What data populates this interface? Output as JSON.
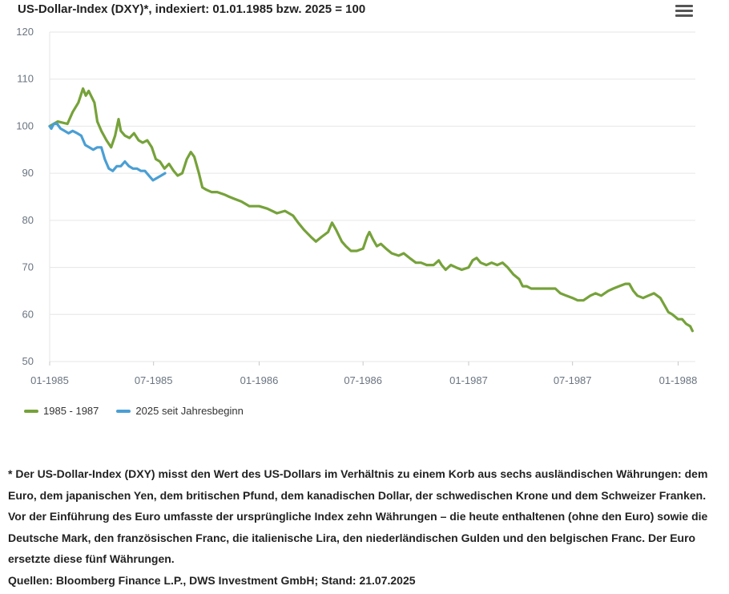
{
  "header": {
    "title": "US-Dollar-Index (DXY)*, indexiert: 01.01.1985 bzw. 2025 = 100",
    "menu_icon": "hamburger-menu-icon"
  },
  "colors": {
    "series_1985": "#76a23a",
    "series_2025": "#4a9fd4",
    "grid": "#e6e6e6",
    "axis_text": "#6a7480"
  },
  "chart_data": {
    "type": "line",
    "title": "US-Dollar-Index (DXY)*, indexiert: 01.01.1985 bzw. 2025 = 100",
    "xlabel": "",
    "ylabel": "",
    "ylim": [
      50,
      120
    ],
    "yticks": [
      50,
      60,
      70,
      80,
      90,
      100,
      110,
      120
    ],
    "xlim": [
      "1985-01-01",
      "1988-01-31"
    ],
    "xticks": [
      {
        "date": "1985-01-01",
        "label": "01-1985"
      },
      {
        "date": "1985-07-01",
        "label": "07-1985"
      },
      {
        "date": "1986-01-01",
        "label": "01-1986"
      },
      {
        "date": "1986-07-01",
        "label": "07-1986"
      },
      {
        "date": "1987-01-01",
        "label": "01-1987"
      },
      {
        "date": "1987-07-01",
        "label": "07-1987"
      },
      {
        "date": "1988-01-01",
        "label": "01-1988"
      }
    ],
    "grid": true,
    "legend_position": "bottom-left",
    "series": [
      {
        "name": "1985 - 1987",
        "color": "#76a23a",
        "points": [
          [
            "1985-01-01",
            100
          ],
          [
            "1985-01-15",
            101
          ],
          [
            "1985-02-01",
            100.5
          ],
          [
            "1985-02-10",
            103
          ],
          [
            "1985-02-20",
            105
          ],
          [
            "1985-02-28",
            108
          ],
          [
            "1985-03-05",
            106.5
          ],
          [
            "1985-03-10",
            107.5
          ],
          [
            "1985-03-20",
            105
          ],
          [
            "1985-03-25",
            101
          ],
          [
            "1985-04-01",
            99
          ],
          [
            "1985-04-10",
            97
          ],
          [
            "1985-04-18",
            95.5
          ],
          [
            "1985-04-25",
            98
          ],
          [
            "1985-05-01",
            101.5
          ],
          [
            "1985-05-05",
            99
          ],
          [
            "1985-05-12",
            98
          ],
          [
            "1985-05-20",
            97.5
          ],
          [
            "1985-05-28",
            98.5
          ],
          [
            "1985-06-05",
            97
          ],
          [
            "1985-06-12",
            96.5
          ],
          [
            "1985-06-20",
            97
          ],
          [
            "1985-06-28",
            95.5
          ],
          [
            "1985-07-05",
            93
          ],
          [
            "1985-07-12",
            92.5
          ],
          [
            "1985-07-20",
            91
          ],
          [
            "1985-07-28",
            92
          ],
          [
            "1985-08-05",
            90.5
          ],
          [
            "1985-08-12",
            89.5
          ],
          [
            "1985-08-20",
            90
          ],
          [
            "1985-08-28",
            93
          ],
          [
            "1985-09-04",
            94.5
          ],
          [
            "1985-09-10",
            93.5
          ],
          [
            "1985-09-18",
            90
          ],
          [
            "1985-09-24",
            87
          ],
          [
            "1985-10-01",
            86.5
          ],
          [
            "1985-10-10",
            86
          ],
          [
            "1985-10-20",
            86
          ],
          [
            "1985-11-01",
            85.5
          ],
          [
            "1985-11-10",
            85
          ],
          [
            "1985-11-20",
            84.5
          ],
          [
            "1985-12-01",
            84
          ],
          [
            "1985-12-15",
            83
          ],
          [
            "1986-01-01",
            83
          ],
          [
            "1986-01-15",
            82.5
          ],
          [
            "1986-02-01",
            81.5
          ],
          [
            "1986-02-15",
            82
          ],
          [
            "1986-03-01",
            81
          ],
          [
            "1986-03-10",
            79.5
          ],
          [
            "1986-03-20",
            78
          ],
          [
            "1986-04-01",
            76.5
          ],
          [
            "1986-04-10",
            75.5
          ],
          [
            "1986-04-20",
            76.5
          ],
          [
            "1986-05-01",
            77.5
          ],
          [
            "1986-05-08",
            79.5
          ],
          [
            "1986-05-15",
            78
          ],
          [
            "1986-05-25",
            75.5
          ],
          [
            "1986-06-01",
            74.5
          ],
          [
            "1986-06-10",
            73.5
          ],
          [
            "1986-06-20",
            73.5
          ],
          [
            "1986-07-01",
            74
          ],
          [
            "1986-07-08",
            76.5
          ],
          [
            "1986-07-12",
            77.5
          ],
          [
            "1986-07-18",
            76
          ],
          [
            "1986-07-25",
            74.5
          ],
          [
            "1986-08-01",
            75
          ],
          [
            "1986-08-10",
            74
          ],
          [
            "1986-08-20",
            73
          ],
          [
            "1986-09-01",
            72.5
          ],
          [
            "1986-09-10",
            73
          ],
          [
            "1986-09-20",
            72
          ],
          [
            "1986-10-01",
            71
          ],
          [
            "1986-10-10",
            71
          ],
          [
            "1986-10-20",
            70.5
          ],
          [
            "1986-11-01",
            70.5
          ],
          [
            "1986-11-10",
            71.5
          ],
          [
            "1986-11-15",
            70.5
          ],
          [
            "1986-11-22",
            69.5
          ],
          [
            "1986-12-01",
            70.5
          ],
          [
            "1986-12-10",
            70
          ],
          [
            "1986-12-20",
            69.5
          ],
          [
            "1987-01-01",
            70
          ],
          [
            "1987-01-08",
            71.5
          ],
          [
            "1987-01-15",
            72
          ],
          [
            "1987-01-22",
            71
          ],
          [
            "1987-02-01",
            70.5
          ],
          [
            "1987-02-10",
            71
          ],
          [
            "1987-02-20",
            70.5
          ],
          [
            "1987-03-01",
            71
          ],
          [
            "1987-03-10",
            70
          ],
          [
            "1987-03-20",
            68.5
          ],
          [
            "1987-03-30",
            67.5
          ],
          [
            "1987-04-05",
            66
          ],
          [
            "1987-04-12",
            66
          ],
          [
            "1987-04-20",
            65.5
          ],
          [
            "1987-05-01",
            65.5
          ],
          [
            "1987-05-15",
            65.5
          ],
          [
            "1987-06-01",
            65.5
          ],
          [
            "1987-06-10",
            64.5
          ],
          [
            "1987-06-20",
            64
          ],
          [
            "1987-07-01",
            63.5
          ],
          [
            "1987-07-10",
            63
          ],
          [
            "1987-07-20",
            63
          ],
          [
            "1987-08-01",
            64
          ],
          [
            "1987-08-10",
            64.5
          ],
          [
            "1987-08-20",
            64
          ],
          [
            "1987-09-01",
            65
          ],
          [
            "1987-09-10",
            65.5
          ],
          [
            "1987-09-20",
            66
          ],
          [
            "1987-10-01",
            66.5
          ],
          [
            "1987-10-08",
            66.5
          ],
          [
            "1987-10-15",
            65
          ],
          [
            "1987-10-22",
            64
          ],
          [
            "1987-11-01",
            63.5
          ],
          [
            "1987-11-10",
            64
          ],
          [
            "1987-11-20",
            64.5
          ],
          [
            "1987-12-01",
            63.5
          ],
          [
            "1987-12-08",
            62
          ],
          [
            "1987-12-15",
            60.5
          ],
          [
            "1987-12-22",
            60
          ],
          [
            "1988-01-01",
            59
          ],
          [
            "1988-01-08",
            59
          ],
          [
            "1988-01-15",
            58
          ],
          [
            "1988-01-22",
            57.5
          ],
          [
            "1988-01-26",
            56.5
          ]
        ]
      },
      {
        "name": "2025 seit Jahresbeginn",
        "color": "#4a9fd4",
        "points": [
          [
            "1985-01-01",
            100
          ],
          [
            "1985-01-04",
            99.5
          ],
          [
            "1985-01-08",
            100.5
          ],
          [
            "1985-01-14",
            100.5
          ],
          [
            "1985-01-20",
            99.5
          ],
          [
            "1985-01-27",
            99
          ],
          [
            "1985-02-03",
            98.5
          ],
          [
            "1985-02-10",
            99
          ],
          [
            "1985-02-18",
            98.5
          ],
          [
            "1985-02-25",
            98
          ],
          [
            "1985-03-04",
            96
          ],
          [
            "1985-03-11",
            95.5
          ],
          [
            "1985-03-18",
            95
          ],
          [
            "1985-03-25",
            95.5
          ],
          [
            "1985-04-01",
            95.5
          ],
          [
            "1985-04-07",
            93
          ],
          [
            "1985-04-14",
            91
          ],
          [
            "1985-04-21",
            90.5
          ],
          [
            "1985-04-28",
            91.5
          ],
          [
            "1985-05-05",
            91.5
          ],
          [
            "1985-05-12",
            92.5
          ],
          [
            "1985-05-19",
            91.5
          ],
          [
            "1985-05-26",
            91
          ],
          [
            "1985-06-02",
            91
          ],
          [
            "1985-06-09",
            90.5
          ],
          [
            "1985-06-16",
            90.5
          ],
          [
            "1985-06-23",
            89.5
          ],
          [
            "1985-06-30",
            88.5
          ],
          [
            "1985-07-07",
            89
          ],
          [
            "1985-07-14",
            89.5
          ],
          [
            "1985-07-21",
            90
          ]
        ]
      }
    ]
  },
  "legend": {
    "items": [
      {
        "label": "1985 - 1987"
      },
      {
        "label": "2025 seit Jahresbeginn"
      }
    ]
  },
  "footnote": {
    "text": "* Der US-Dollar-Index (DXY) misst den Wert des US-Dollars im Verhältnis zu einem Korb aus sechs ausländischen Währungen: dem Euro, dem japanischen Yen, dem britischen Pfund, dem kanadischen Dollar, der schwedischen Krone und dem Schweizer Franken. Vor der Einführung des Euro umfasste der ursprüngliche Index zehn Währungen – die heute enthaltenen (ohne den Euro) sowie die Deutsche Mark, den französischen Franc, die italienische Lira, den niederländischen Gulden und den belgischen Franc. Der Euro ersetzte diese fünf Währungen.",
    "sources": "Quellen: Bloomberg Finance L.P., DWS Investment GmbH; Stand: 21.07.2025"
  }
}
